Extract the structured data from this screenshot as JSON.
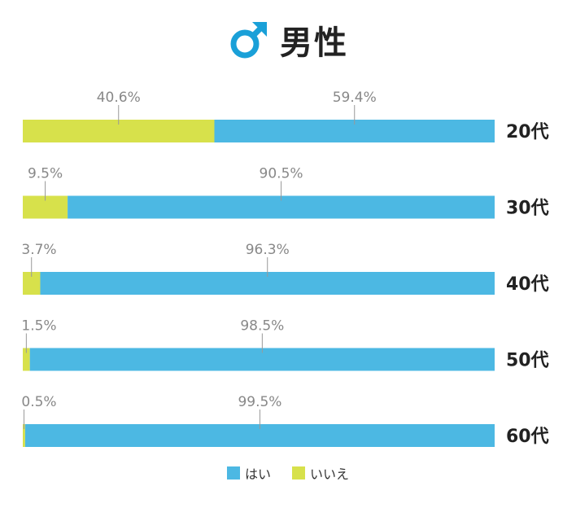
{
  "title": "男性",
  "colors": {
    "yes": "#4cb8e3",
    "no": "#d7e14b",
    "label": "#888888",
    "axis_label": "#222222",
    "leader": "#999999"
  },
  "chart_data": {
    "type": "bar",
    "orientation": "horizontal",
    "stacked": true,
    "normalized_to": 100,
    "categories": [
      "20代",
      "30代",
      "40代",
      "50代",
      "60代"
    ],
    "series": [
      {
        "name": "いいえ",
        "values": [
          40.6,
          9.5,
          3.7,
          1.5,
          0.5
        ],
        "labels": [
          "40.6%",
          "9.5%",
          "3.7%",
          "1.5%",
          "0.5%"
        ]
      },
      {
        "name": "はい",
        "values": [
          59.4,
          90.5,
          96.3,
          98.5,
          99.5
        ],
        "labels": [
          "59.4%",
          "90.5%",
          "96.3%",
          "98.5%",
          "99.5%"
        ]
      }
    ],
    "legend": [
      "はい",
      "いいえ"
    ],
    "legend_position": "bottom",
    "xlim": [
      0,
      100
    ],
    "grid": false
  }
}
